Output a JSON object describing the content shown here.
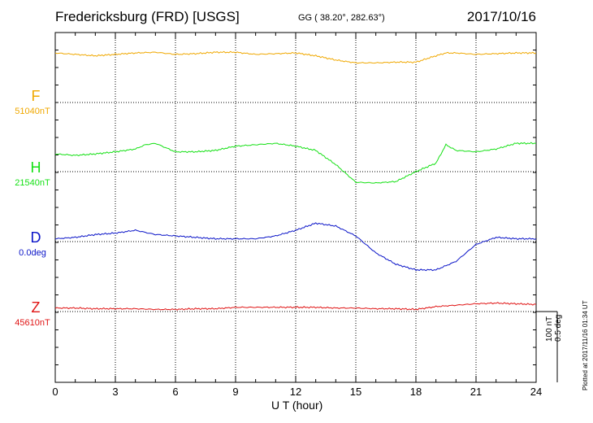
{
  "header": {
    "title": "Fredericksburg (FRD)  [USGS]",
    "coords": "GG ( 38.20°, 282.63°)",
    "date": "2017/10/16"
  },
  "footer": {
    "scale": "100 nT",
    "scale_deg": "0.5 deg",
    "plotted": "Plotted at 2017/11/16 01:34 UT"
  },
  "colors": {
    "F": "#f0a800",
    "H": "#14e014",
    "D": "#0a14c8",
    "Z": "#e01414"
  },
  "chart_data": {
    "type": "line",
    "title": "Fredericksburg (FRD)  [USGS]",
    "xlabel": "U T (hour)",
    "xlim": [
      0,
      24
    ],
    "xticks": [
      0,
      3,
      6,
      9,
      12,
      15,
      18,
      21,
      24
    ],
    "tick_labels": [
      "0",
      "3",
      "6",
      "9",
      "12",
      "15",
      "18",
      "21",
      "24"
    ],
    "grid": true,
    "series": [
      {
        "name": "F",
        "baseline": "51040nT",
        "units": "nT",
        "x": [
          0,
          1,
          2,
          3,
          4,
          5,
          6,
          7,
          8,
          9,
          10,
          11,
          12,
          13,
          14,
          15,
          16,
          17,
          18,
          19,
          19.5,
          20,
          21,
          22,
          23,
          24
        ],
        "y": [
          70,
          68,
          66,
          68,
          70,
          71,
          68,
          69,
          71,
          71,
          68,
          69,
          70,
          66,
          60,
          56,
          56,
          57,
          57,
          66,
          70,
          70,
          68,
          69,
          70,
          70
        ]
      },
      {
        "name": "H",
        "baseline": "21540nT",
        "units": "nT",
        "x": [
          0,
          1,
          2,
          3,
          4,
          4.5,
          5,
          5.5,
          6,
          7,
          8,
          9,
          10,
          11,
          12,
          13,
          14,
          15,
          16,
          17,
          18,
          19,
          19.5,
          20,
          21,
          22,
          23,
          24
        ],
        "y": [
          25,
          23,
          25,
          28,
          32,
          38,
          40,
          34,
          28,
          28,
          30,
          36,
          38,
          40,
          36,
          30,
          10,
          -15,
          -16,
          -14,
          0,
          12,
          38,
          30,
          28,
          32,
          40,
          40
        ]
      },
      {
        "name": "D",
        "baseline": "0.0deg",
        "units": "deg",
        "x": [
          0,
          1,
          2,
          3,
          4,
          5,
          6,
          7,
          8,
          9,
          10,
          11,
          12,
          13,
          14,
          15,
          16,
          17,
          18,
          19,
          20,
          21,
          22,
          23,
          24
        ],
        "y": [
          0.02,
          0.03,
          0.05,
          0.06,
          0.08,
          0.05,
          0.04,
          0.03,
          0.02,
          0.02,
          0.02,
          0.04,
          0.08,
          0.13,
          0.11,
          0.04,
          -0.08,
          -0.16,
          -0.2,
          -0.2,
          -0.14,
          -0.02,
          0.03,
          0.02,
          0.02
        ]
      },
      {
        "name": "Z",
        "baseline": "45610nT",
        "units": "nT",
        "x": [
          0,
          1,
          2,
          3,
          4,
          5,
          6,
          7,
          8,
          9,
          10,
          11,
          12,
          13,
          14,
          15,
          16,
          17,
          18,
          19,
          20,
          21,
          22,
          23,
          24
        ],
        "y": [
          5,
          5,
          4,
          4,
          4,
          3,
          3,
          4,
          4,
          6,
          6,
          6,
          6,
          6,
          5,
          5,
          4,
          4,
          3,
          7,
          9,
          11,
          12,
          11,
          10
        ]
      }
    ]
  }
}
